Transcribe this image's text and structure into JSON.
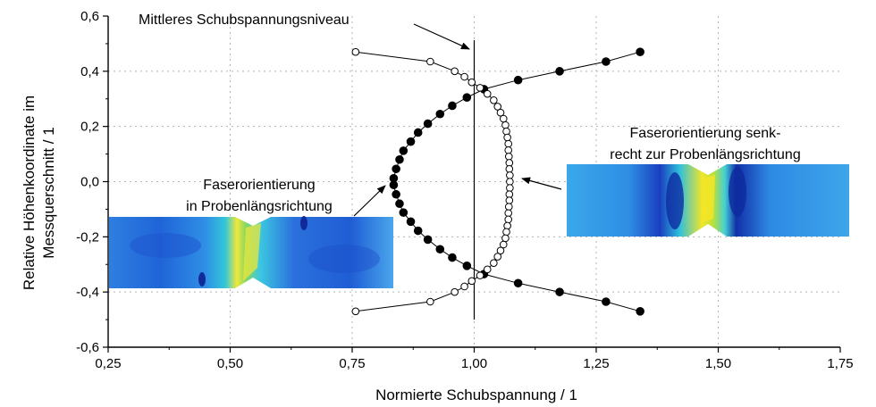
{
  "chart_data": {
    "type": "scatter",
    "xlabel": "Normierte Schubspannung / 1",
    "ylabel_lines": [
      "Relative Höhenkoordinate im",
      "Messquerschnitt / 1"
    ],
    "xlim": [
      0.25,
      1.75
    ],
    "ylim": [
      -0.6,
      0.6
    ],
    "x_ticks": [
      0.25,
      0.5,
      0.75,
      1.0,
      1.25,
      1.5,
      1.75
    ],
    "x_tick_labels": [
      "0,25",
      "0,50",
      "0,75",
      "1,00",
      "1,25",
      "1,50",
      "1,75"
    ],
    "y_ticks": [
      -0.6,
      -0.4,
      -0.2,
      0.0,
      0.2,
      0.4,
      0.6
    ],
    "y_tick_labels": [
      "-0,6",
      "-0,4",
      "-0,2",
      "0,0",
      "0,2",
      "0,4",
      "0,6"
    ],
    "grid": true,
    "reference_line": {
      "x": 1.0,
      "label": "Mittleres Schubspannungsniveau"
    },
    "series": [
      {
        "marker": "filled",
        "points": [
          [
            1.34,
            0.47
          ],
          [
            1.27,
            0.435
          ],
          [
            1.175,
            0.4
          ],
          [
            1.09,
            0.368
          ],
          [
            1.02,
            0.335
          ],
          [
            0.985,
            0.305
          ],
          [
            0.955,
            0.275
          ],
          [
            0.93,
            0.245
          ],
          [
            0.905,
            0.21
          ],
          [
            0.885,
            0.178
          ],
          [
            0.87,
            0.145
          ],
          [
            0.855,
            0.112
          ],
          [
            0.847,
            0.08
          ],
          [
            0.84,
            0.046
          ],
          [
            0.835,
            0.012
          ],
          [
            0.835,
            -0.012
          ],
          [
            0.84,
            -0.046
          ],
          [
            0.847,
            -0.08
          ],
          [
            0.855,
            -0.112
          ],
          [
            0.87,
            -0.145
          ],
          [
            0.885,
            -0.178
          ],
          [
            0.905,
            -0.21
          ],
          [
            0.93,
            -0.245
          ],
          [
            0.955,
            -0.275
          ],
          [
            0.985,
            -0.305
          ],
          [
            1.02,
            -0.335
          ],
          [
            1.09,
            -0.368
          ],
          [
            1.175,
            -0.4
          ],
          [
            1.27,
            -0.435
          ],
          [
            1.34,
            -0.47
          ]
        ]
      },
      {
        "marker": "open",
        "points": [
          [
            0.757,
            0.47
          ],
          [
            0.91,
            0.435
          ],
          [
            0.96,
            0.4
          ],
          [
            0.98,
            0.38
          ],
          [
            0.995,
            0.36
          ],
          [
            1.012,
            0.34
          ],
          [
            1.027,
            0.318
          ],
          [
            1.04,
            0.295
          ],
          [
            1.048,
            0.272
          ],
          [
            1.054,
            0.25
          ],
          [
            1.06,
            0.228
          ],
          [
            1.064,
            0.205
          ],
          [
            1.066,
            0.182
          ],
          [
            1.068,
            0.16
          ],
          [
            1.07,
            0.137
          ],
          [
            1.07,
            0.114
          ],
          [
            1.071,
            0.091
          ],
          [
            1.072,
            0.068
          ],
          [
            1.072,
            0.046
          ],
          [
            1.073,
            0.023
          ],
          [
            1.073,
            0.0
          ],
          [
            1.073,
            -0.023
          ],
          [
            1.072,
            -0.046
          ],
          [
            1.072,
            -0.068
          ],
          [
            1.071,
            -0.091
          ],
          [
            1.07,
            -0.114
          ],
          [
            1.07,
            -0.137
          ],
          [
            1.068,
            -0.16
          ],
          [
            1.066,
            -0.182
          ],
          [
            1.064,
            -0.205
          ],
          [
            1.06,
            -0.228
          ],
          [
            1.054,
            -0.25
          ],
          [
            1.048,
            -0.272
          ],
          [
            1.04,
            -0.295
          ],
          [
            1.027,
            -0.318
          ],
          [
            1.012,
            -0.34
          ],
          [
            0.995,
            -0.36
          ],
          [
            0.98,
            -0.38
          ],
          [
            0.96,
            -0.4
          ],
          [
            0.91,
            -0.435
          ],
          [
            0.757,
            -0.47
          ]
        ]
      }
    ],
    "annotations": {
      "left_lines": [
        "Faserorientierung",
        "in Probenlängsrichtung"
      ],
      "right_lines": [
        "Faserorientierung senk-",
        "recht zur Probenlängsrichtung"
      ]
    }
  },
  "colors": {
    "axis": "#000000",
    "grid": "#b4b4b4",
    "line": "#000000",
    "filled_marker": "#000000",
    "open_marker_fill": "#ffffff"
  }
}
